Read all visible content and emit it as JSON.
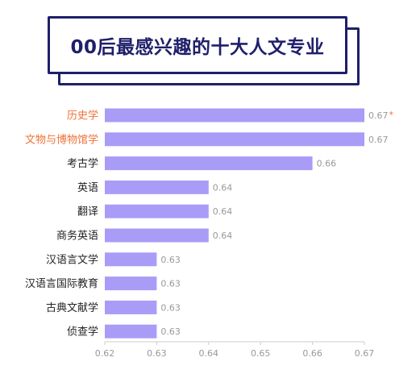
{
  "title": "00后最感兴趣的十大人文专业",
  "chart_data": {
    "type": "bar",
    "orientation": "horizontal",
    "categories": [
      "历史学",
      "文物与博物馆学",
      "考古学",
      "英语",
      "翻译",
      "商务英语",
      "汉语言文学",
      "汉语言国际教育",
      "古典文献学",
      "侦查学"
    ],
    "values": [
      0.67,
      0.67,
      0.66,
      0.64,
      0.64,
      0.64,
      0.63,
      0.63,
      0.63,
      0.63
    ],
    "value_labels": [
      "0.67",
      "0.67",
      "0.66",
      "0.64",
      "0.64",
      "0.64",
      "0.63",
      "0.63",
      "0.63",
      "0.63"
    ],
    "annotation": {
      "category": "历史学",
      "text": "*"
    },
    "highlight_categories": [
      "历史学",
      "文物与博物馆学"
    ],
    "xlim": [
      0.62,
      0.67
    ],
    "xticks": [
      "0.62",
      "0.63",
      "0.64",
      "0.65",
      "0.66",
      "0.67"
    ],
    "grid": false,
    "colors": {
      "bar": "#a99cf7",
      "highlight_label": "#f07035",
      "label": "#222222",
      "value_label": "#999999",
      "annotation": "#f07035",
      "axis": "#cccccc"
    }
  }
}
